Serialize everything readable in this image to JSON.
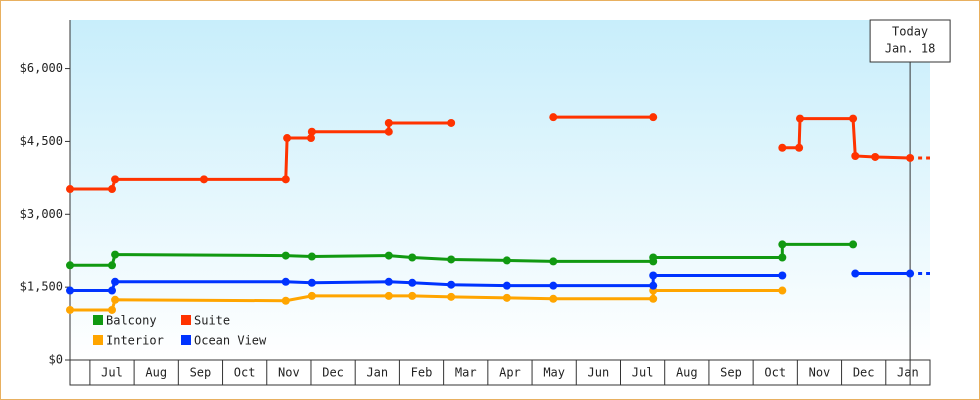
{
  "chart_data": {
    "type": "line",
    "ylim": [
      0,
      7000
    ],
    "yticks": [
      {
        "value": 0,
        "label": "$0"
      },
      {
        "value": 1500,
        "label": "$1,500"
      },
      {
        "value": 3000,
        "label": "$3,000"
      },
      {
        "value": 4500,
        "label": "$4,500"
      },
      {
        "value": 6000,
        "label": "$6,000"
      }
    ],
    "xlim": [
      -0.45,
      19
    ],
    "xticks": [
      {
        "value": 0.5,
        "label": "Jul"
      },
      {
        "value": 1.5,
        "label": "Aug"
      },
      {
        "value": 2.5,
        "label": "Sep"
      },
      {
        "value": 3.5,
        "label": "Oct"
      },
      {
        "value": 4.5,
        "label": "Nov"
      },
      {
        "value": 5.5,
        "label": "Dec"
      },
      {
        "value": 6.5,
        "label": "Jan"
      },
      {
        "value": 7.5,
        "label": "Feb"
      },
      {
        "value": 8.5,
        "label": "Mar"
      },
      {
        "value": 9.5,
        "label": "Apr"
      },
      {
        "value": 10.5,
        "label": "May"
      },
      {
        "value": 11.5,
        "label": "Jun"
      },
      {
        "value": 12.5,
        "label": "Jul"
      },
      {
        "value": 13.5,
        "label": "Aug"
      },
      {
        "value": 14.5,
        "label": "Sep"
      },
      {
        "value": 15.5,
        "label": "Oct"
      },
      {
        "value": 16.5,
        "label": "Nov"
      },
      {
        "value": 17.5,
        "label": "Dec"
      },
      {
        "value": 18.5,
        "label": "Jan"
      }
    ],
    "annotation": {
      "x": 18.55,
      "lines": [
        "Today",
        "Jan. 18"
      ]
    },
    "series": [
      {
        "name": "Balcony",
        "color": "#119911",
        "x": [
          -0.45,
          0.5,
          0.57,
          4.43,
          5.02,
          6.76,
          7.29,
          8.17,
          9.43,
          10.48,
          12.74,
          12.74,
          15.66,
          15.66,
          17.26
        ],
        "values": [
          1950,
          1950,
          2170,
          2150,
          2130,
          2150,
          2110,
          2070,
          2050,
          2030,
          2030,
          2110,
          2110,
          2380,
          2380
        ]
      },
      {
        "name": "Suite",
        "color": "#ff3300",
        "x": [
          -0.45,
          0.5,
          0.57,
          2.58,
          4.43,
          4.46,
          5.0,
          5.02,
          6.76,
          6.76,
          8.17,
          null,
          10.48,
          12.74,
          null,
          15.66,
          16.04,
          16.06,
          17.26,
          17.31,
          17.76,
          18.55
        ],
        "values": [
          3520,
          3520,
          3720,
          3720,
          3720,
          4570,
          4570,
          4700,
          4700,
          4880,
          4880,
          null,
          5000,
          5000,
          null,
          4370,
          4370,
          4970,
          4970,
          4200,
          4180,
          4160
        ]
      },
      {
        "name": "Interior",
        "color": "#ffa500",
        "x": [
          -0.45,
          0.5,
          0.57,
          4.43,
          5.02,
          6.76,
          7.29,
          8.17,
          9.43,
          10.48,
          12.74,
          12.74,
          15.66
        ],
        "values": [
          1030,
          1030,
          1240,
          1220,
          1320,
          1320,
          1320,
          1300,
          1280,
          1260,
          1260,
          1430,
          1430
        ]
      },
      {
        "name": "Ocean View",
        "color": "#0033ff",
        "x": [
          -0.45,
          0.5,
          0.57,
          4.43,
          5.02,
          6.76,
          7.29,
          8.17,
          9.43,
          10.48,
          12.74,
          12.74,
          15.66,
          null,
          17.31,
          18.55
        ],
        "values": [
          1430,
          1430,
          1610,
          1610,
          1590,
          1610,
          1590,
          1550,
          1530,
          1530,
          1530,
          1740,
          1740,
          null,
          1780,
          1780
        ]
      }
    ]
  }
}
